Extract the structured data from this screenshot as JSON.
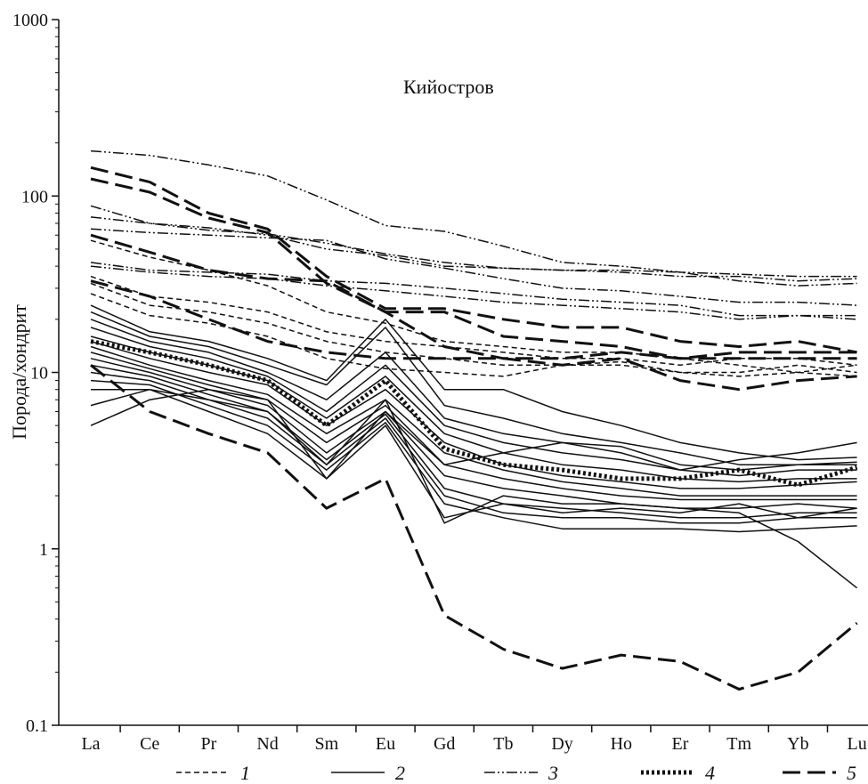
{
  "chart_data": {
    "type": "line",
    "title": "Кийостров",
    "ylabel": "Порода/хондрит",
    "xlabel": "",
    "yscale": "log",
    "ylim": [
      0.1,
      1000
    ],
    "y_ticks": [
      "0.1",
      "1",
      "10",
      "100",
      "1000"
    ],
    "categories": [
      "La",
      "Ce",
      "Pr",
      "Nd",
      "Sm",
      "Eu",
      "Gd",
      "Tb",
      "Dy",
      "Ho",
      "Er",
      "Tm",
      "Yb",
      "Lu"
    ],
    "grid": false,
    "legend_position": "bottom",
    "legend": [
      {
        "label": "1",
        "style": "dashed-short",
        "stroke_width": 1.5
      },
      {
        "label": "2",
        "style": "solid",
        "stroke_width": 1.5
      },
      {
        "label": "3",
        "style": "dash-dot-dot",
        "stroke_width": 1.5
      },
      {
        "label": "4",
        "style": "dotted-thick",
        "stroke_width": 5
      },
      {
        "label": "5",
        "style": "dashed-long",
        "stroke_width": 3
      }
    ],
    "series": [
      {
        "group": "1",
        "values": [
          35,
          27,
          25,
          22,
          17,
          15,
          14,
          13,
          12,
          12,
          11,
          12,
          12,
          11
        ]
      },
      {
        "group": "1",
        "values": [
          32,
          24,
          22,
          19,
          15,
          13,
          12,
          11,
          11,
          11,
          10,
          10,
          11,
          10
        ]
      },
      {
        "group": "1",
        "values": [
          28,
          21,
          19,
          16,
          12,
          10.5,
          10,
          9.5,
          11,
          11.5,
          10,
          9.5,
          10,
          9.5
        ]
      },
      {
        "group": "1",
        "values": [
          56,
          45,
          38,
          31,
          22,
          19,
          15,
          14,
          13,
          13,
          12,
          11,
          10,
          11
        ]
      },
      {
        "group": "2",
        "values": [
          24,
          17,
          15,
          12,
          9,
          20,
          8,
          8,
          6,
          5,
          4,
          3.5,
          3.2,
          3.3
        ]
      },
      {
        "group": "2",
        "values": [
          22,
          16,
          14,
          11,
          8.5,
          18,
          6.5,
          5.5,
          4.5,
          4,
          3.5,
          3,
          3,
          3.1
        ]
      },
      {
        "group": "2",
        "values": [
          20,
          15,
          13,
          10,
          7,
          13,
          5.5,
          4.5,
          4,
          3.8,
          3,
          2.8,
          3,
          3
        ]
      },
      {
        "group": "2",
        "values": [
          18,
          14,
          12,
          9.5,
          6,
          11,
          5,
          4,
          3.5,
          3.2,
          2.8,
          2.6,
          2.8,
          2.8
        ]
      },
      {
        "group": "2",
        "values": [
          16,
          13,
          11,
          9,
          5.5,
          9.5,
          4.5,
          3.5,
          3,
          2.8,
          2.5,
          2.4,
          2.5,
          2.5
        ]
      },
      {
        "group": "2",
        "values": [
          15,
          12,
          10,
          8.5,
          5,
          8,
          4,
          3,
          2.6,
          2.4,
          2.2,
          2.2,
          2.3,
          2.4
        ]
      },
      {
        "group": "2",
        "values": [
          14,
          11,
          9,
          7.5,
          4.5,
          7,
          3.5,
          2.8,
          2.4,
          2.2,
          2,
          2,
          2,
          2
        ]
      },
      {
        "group": "2",
        "values": [
          13,
          10.5,
          8.5,
          7,
          4,
          6.5,
          3,
          2.5,
          2.2,
          2,
          1.9,
          1.9,
          1.9,
          1.9
        ]
      },
      {
        "group": "2",
        "values": [
          12,
          10,
          8,
          6.5,
          3.5,
          6,
          2.6,
          2.2,
          2,
          1.8,
          1.7,
          1.7,
          1.8,
          1.7
        ]
      },
      {
        "group": "2",
        "values": [
          11,
          9.5,
          7.5,
          6,
          3.2,
          5.8,
          2.2,
          1.8,
          1.7,
          1.6,
          1.5,
          1.5,
          1.6,
          1.6
        ]
      },
      {
        "group": "2",
        "values": [
          10,
          9,
          7,
          5.5,
          3,
          5.5,
          2,
          1.6,
          1.5,
          1.5,
          1.4,
          1.4,
          1.5,
          1.5
        ]
      },
      {
        "group": "2",
        "values": [
          9,
          8.5,
          6.5,
          5,
          2.8,
          5.2,
          1.8,
          1.5,
          1.3,
          1.3,
          1.3,
          1.25,
          1.3,
          1.35
        ]
      },
      {
        "group": "2",
        "values": [
          8,
          8,
          6,
          4.5,
          2.5,
          5,
          1.5,
          1.8,
          1.6,
          1.7,
          1.6,
          1.8,
          1.5,
          1.7
        ]
      },
      {
        "group": "2",
        "values": [
          6.5,
          8,
          7,
          6,
          3,
          7,
          1.4,
          2,
          1.8,
          1.8,
          1.7,
          1.6,
          1.1,
          0.6
        ]
      },
      {
        "group": "2",
        "values": [
          5,
          7,
          8,
          7,
          2.5,
          6,
          3,
          3.5,
          4,
          3.5,
          2.8,
          3.2,
          3.5,
          4
        ]
      },
      {
        "group": "3",
        "values": [
          180,
          170,
          150,
          130,
          95,
          68,
          63,
          52,
          42,
          40,
          37,
          36,
          35,
          35
        ]
      },
      {
        "group": "3",
        "values": [
          88,
          70,
          64,
          61,
          54,
          47,
          42,
          39,
          38,
          37,
          35,
          35,
          33,
          34
        ]
      },
      {
        "group": "3",
        "values": [
          76,
          70,
          66,
          60,
          50,
          46,
          40,
          39,
          38,
          38,
          37,
          33,
          31,
          32
        ]
      },
      {
        "group": "3",
        "values": [
          65,
          62,
          60,
          58,
          56,
          44,
          39,
          34,
          30,
          29,
          27,
          25,
          25,
          24
        ]
      },
      {
        "group": "3",
        "values": [
          42,
          38,
          37,
          36,
          33,
          32,
          30,
          28,
          26,
          25,
          24,
          21,
          21,
          21
        ]
      },
      {
        "group": "3",
        "values": [
          40,
          37,
          35,
          34,
          31,
          29,
          27,
          25,
          24,
          23,
          22,
          20,
          21,
          20
        ]
      },
      {
        "group": "4",
        "values": [
          15,
          13,
          11,
          9,
          5,
          9,
          3.7,
          3,
          2.8,
          2.5,
          2.5,
          2.8,
          2.3,
          2.9
        ]
      },
      {
        "group": "5",
        "values": [
          145,
          120,
          80,
          65,
          35,
          23,
          23,
          20,
          18,
          18,
          15,
          14,
          15,
          13
        ]
      },
      {
        "group": "5",
        "values": [
          125,
          105,
          75,
          62,
          32,
          22,
          22,
          16,
          15,
          14,
          12,
          12,
          12,
          12
        ]
      },
      {
        "group": "5",
        "values": [
          60,
          48,
          38,
          34,
          33,
          22,
          14,
          12,
          12,
          13,
          12,
          13,
          13,
          13
        ]
      },
      {
        "group": "5",
        "values": [
          33,
          27,
          20,
          15,
          13,
          12,
          12,
          12,
          11,
          12,
          9,
          8,
          9,
          9.5
        ]
      },
      {
        "group": "5",
        "values": [
          11,
          6,
          4.5,
          3.5,
          1.7,
          2.5,
          0.42,
          0.27,
          0.21,
          0.25,
          0.23,
          0.16,
          0.2,
          0.38
        ]
      }
    ]
  }
}
